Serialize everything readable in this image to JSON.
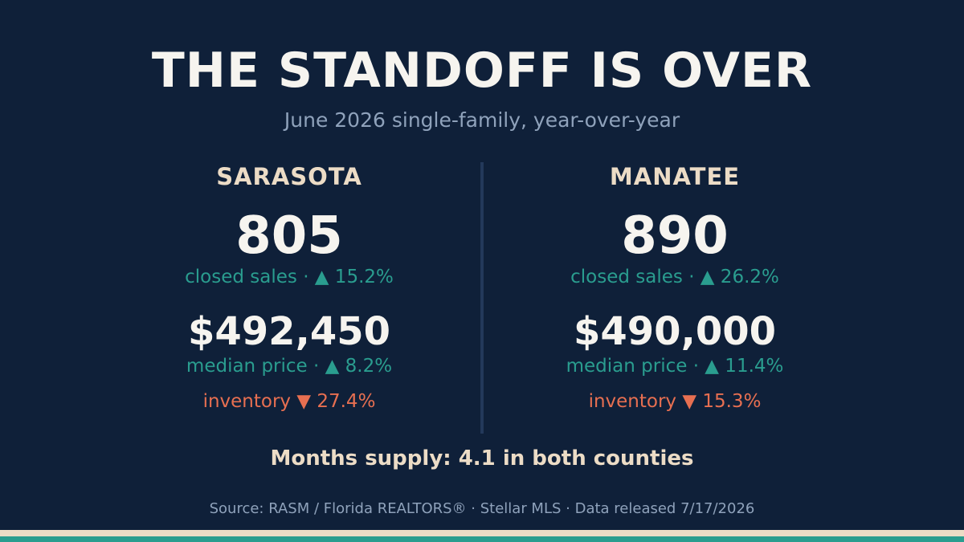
{
  "title": "THE STANDOFF IS OVER",
  "subtitle": "June 2026 single-family, year-over-year",
  "counties": [
    {
      "name": "SARASOTA",
      "closed_sales": "805",
      "closed_sales_label": "closed sales · ▲ 15.2%",
      "median_price": "$492,450",
      "median_price_label": "median price · ▲ 8.2%",
      "inventory_label": "inventory ▼ 27.4%"
    },
    {
      "name": "MANATEE",
      "closed_sales": "890",
      "closed_sales_label": "closed sales · ▲ 26.2%",
      "median_price": "$490,000",
      "median_price_label": "median price · ▲ 11.4%",
      "inventory_label": "inventory ▼ 15.3%"
    }
  ],
  "months_supply": "Months supply: 4.1 in both counties",
  "source": "Source: RASM / Florida REALTORS® · Stellar MLS · Data released 7/17/2026",
  "colors": {
    "background": "#0f2039",
    "accent_teal": "#2a9d8f",
    "accent_coral": "#e76f51",
    "accent_cream": "#ecdcc6"
  }
}
